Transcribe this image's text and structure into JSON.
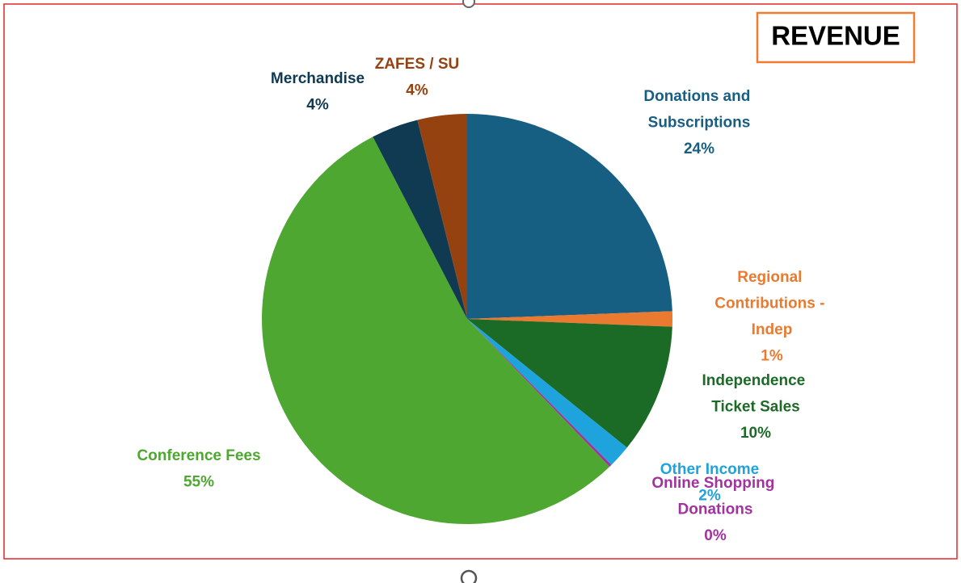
{
  "chart_data": {
    "type": "pie",
    "title": "REVENUE",
    "categories": [
      "Donations and Subscriptions",
      "Regional Contributions - Indep",
      "Independence Ticket Sales",
      "Other Income",
      "Online Shopping Donations",
      "Conference Fees",
      "Merchandise",
      "ZAFES / SU"
    ],
    "values": [
      24.4,
      1.2,
      10.2,
      1.8,
      0.2,
      54.6,
      3.7,
      3.9
    ],
    "value_labels": [
      "24%",
      "1%",
      "10%",
      "2%",
      "0%",
      "55%",
      "4%",
      "4%"
    ],
    "colors": [
      "#175e83",
      "#e97a2f",
      "#1b6b26",
      "#1fa3dd",
      "#a1339f",
      "#4ea731",
      "#0f3a52",
      "#964110"
    ]
  }
}
